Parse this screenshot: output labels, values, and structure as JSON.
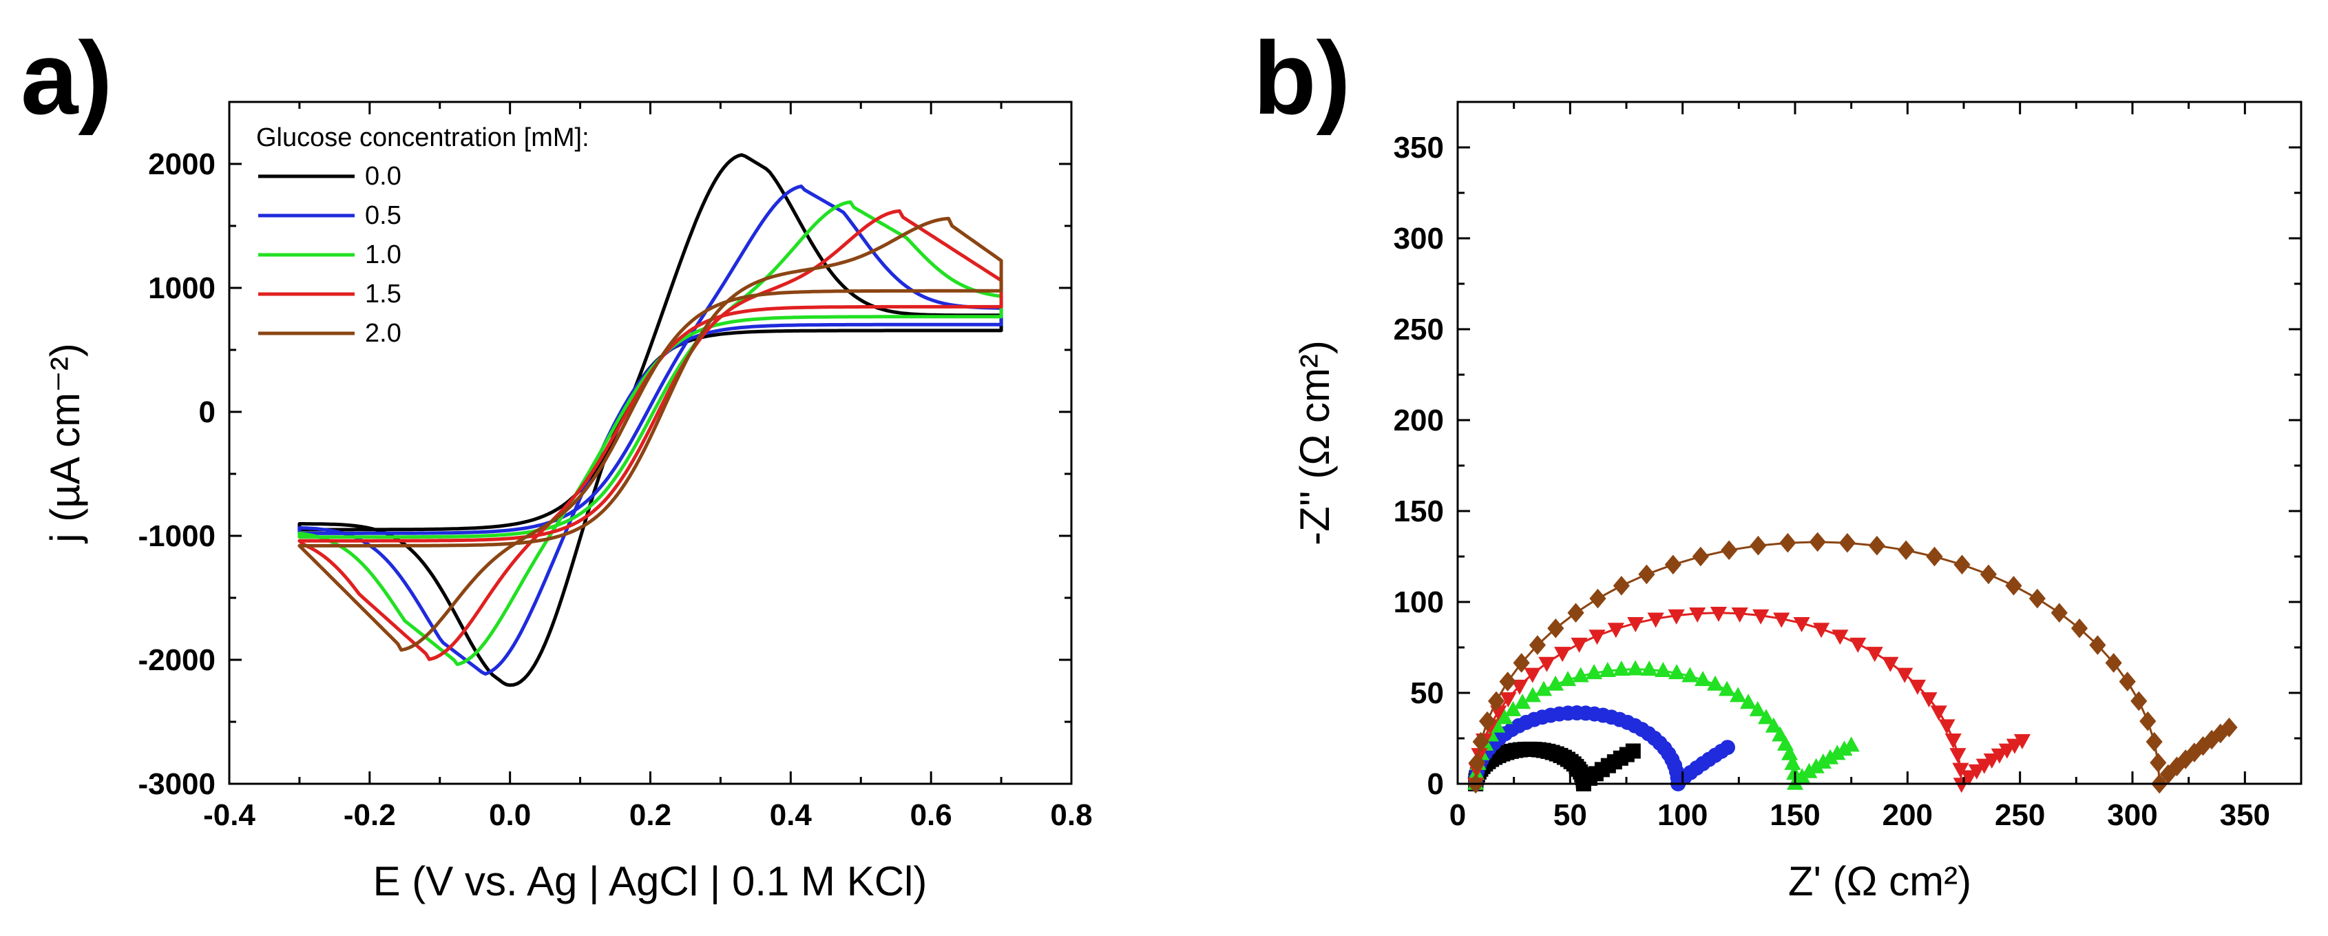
{
  "chart_data": [
    {
      "panel": "a)",
      "type": "line",
      "title": "",
      "xlabel": "E (V vs. Ag | AgCl | 0.1 M KCl)",
      "ylabel": "j (µA cm⁻²)",
      "xlim": [
        -0.4,
        0.8
      ],
      "ylim": [
        -3000,
        2500
      ],
      "xticks": [
        -0.4,
        -0.2,
        0.0,
        0.2,
        0.4,
        0.6,
        0.8
      ],
      "xtick_labels": [
        "-0.4",
        "-0.2",
        "0.0",
        "0.2",
        "0.4",
        "0.6",
        "0.8"
      ],
      "yticks": [
        -3000,
        -2000,
        -1000,
        0,
        1000,
        2000
      ],
      "ytick_labels": [
        "-3000",
        "-2000",
        "-1000",
        "0",
        "1000",
        "2000"
      ],
      "legend_title": "Glucose concentration [mM]:",
      "legend_position": "top-left",
      "series": [
        {
          "name": "0.0",
          "color": "#000000",
          "E_start": -0.3,
          "j_start": -950,
          "E_end": 0.7,
          "j_end": 820,
          "anodic_peak": [
            0.33,
            2080
          ],
          "cathodic_peak": [
            0.01,
            -2270
          ],
          "E_half": 0.17
        },
        {
          "name": "0.5",
          "color": "#1f2bdc",
          "E_start": -0.3,
          "j_start": -980,
          "E_end": 0.7,
          "j_end": 880,
          "anodic_peak": [
            0.42,
            1790
          ],
          "cathodic_peak": [
            -0.04,
            -2100
          ],
          "E_half": 0.19
        },
        {
          "name": "1.0",
          "color": "#22e022",
          "E_start": -0.3,
          "j_start": -1010,
          "E_end": 0.7,
          "j_end": 960,
          "anodic_peak": [
            0.49,
            1650
          ],
          "cathodic_peak": [
            -0.08,
            -2000
          ],
          "E_half": 0.2
        },
        {
          "name": "1.5",
          "color": "#e02020",
          "E_start": -0.3,
          "j_start": -1040,
          "E_end": 0.7,
          "j_end": 1060,
          "anodic_peak": [
            0.56,
            1570
          ],
          "cathodic_peak": [
            -0.12,
            -1950
          ],
          "E_half": 0.21
        },
        {
          "name": "2.0",
          "color": "#8b4513",
          "E_start": -0.3,
          "j_start": -1080,
          "E_end": 0.7,
          "j_end": 1220,
          "anodic_peak": [
            0.63,
            1500
          ],
          "cathodic_peak": [
            -0.16,
            -1870
          ],
          "E_half": 0.22
        }
      ]
    },
    {
      "panel": "b)",
      "type": "scatter",
      "title": "",
      "xlabel": "Z' (Ω cm²)",
      "ylabel": "-Z'' (Ω cm²)",
      "xlim": [
        0,
        375
      ],
      "ylim": [
        0,
        375
      ],
      "xticks": [
        0,
        50,
        100,
        150,
        200,
        250,
        300,
        350
      ],
      "xtick_labels": [
        "0",
        "50",
        "100",
        "150",
        "200",
        "250",
        "300",
        "350"
      ],
      "yticks": [
        0,
        50,
        100,
        150,
        200,
        250,
        300,
        350
      ],
      "ytick_labels": [
        "0",
        "50",
        "100",
        "150",
        "200",
        "250",
        "300",
        "350"
      ],
      "series": [
        {
          "name": "0.0 mM",
          "color": "#000000",
          "marker": "square",
          "R_s": 8,
          "arc_end": 56,
          "max_imag": 19,
          "tail_end": [
            78,
            18
          ]
        },
        {
          "name": "0.5 mM",
          "color": "#1f2bdc",
          "marker": "circle",
          "R_s": 8,
          "arc_end": 98,
          "max_imag": 39,
          "tail_end": [
            120,
            20
          ]
        },
        {
          "name": "1.0 mM",
          "color": "#22e022",
          "marker": "triangle-up",
          "R_s": 8,
          "arc_end": 150,
          "max_imag": 63,
          "tail_end": [
            175,
            21
          ]
        },
        {
          "name": "1.5 mM",
          "color": "#e02020",
          "marker": "triangle-down",
          "R_s": 8,
          "arc_end": 224,
          "max_imag": 94,
          "tail_end": [
            251,
            24
          ]
        },
        {
          "name": "2.0 mM",
          "color": "#8b4513",
          "marker": "diamond",
          "R_s": 8,
          "arc_end": 312,
          "max_imag": 133,
          "tail_end": [
            343,
            31
          ]
        }
      ]
    }
  ]
}
